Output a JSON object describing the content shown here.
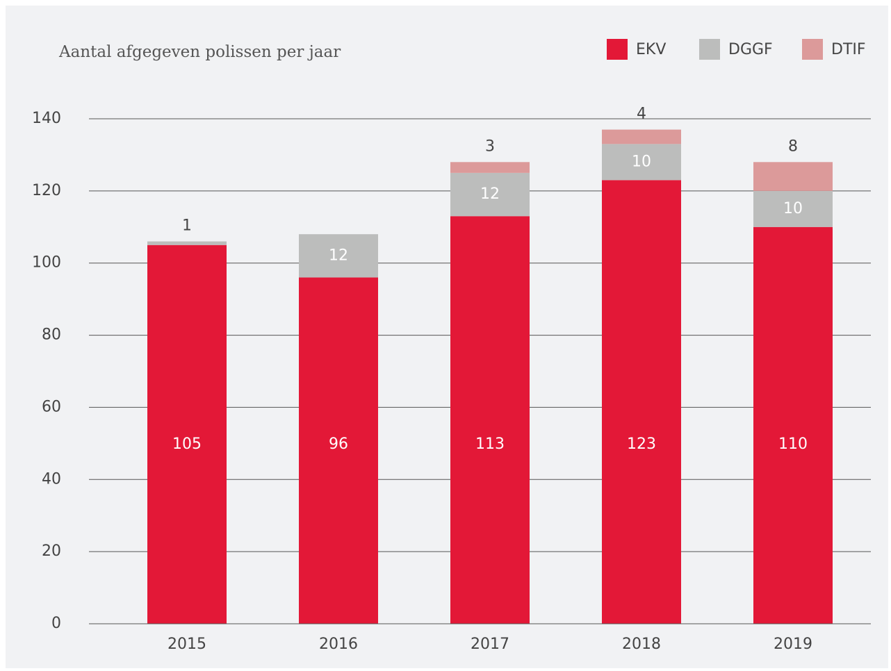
{
  "chart_data": {
    "type": "stacked_bar",
    "title": "Aantal afgegeven polissen per jaar",
    "categories": [
      "2015",
      "2016",
      "2017",
      "2018",
      "2019"
    ],
    "series": [
      {
        "name": "EKV",
        "color": "#e31837",
        "values": [
          105,
          96,
          113,
          123,
          110
        ]
      },
      {
        "name": "DGGF",
        "color": "#bcbdbc",
        "values": [
          1,
          12,
          12,
          10,
          10
        ]
      },
      {
        "name": "DTIF",
        "color": "#dc9a9a",
        "values": [
          null,
          null,
          3,
          4,
          8
        ]
      }
    ],
    "ylim": [
      0,
      140
    ],
    "yticks": [
      0,
      20,
      40,
      60,
      80,
      100,
      120,
      140
    ],
    "grid": true,
    "legend": "top-right"
  }
}
